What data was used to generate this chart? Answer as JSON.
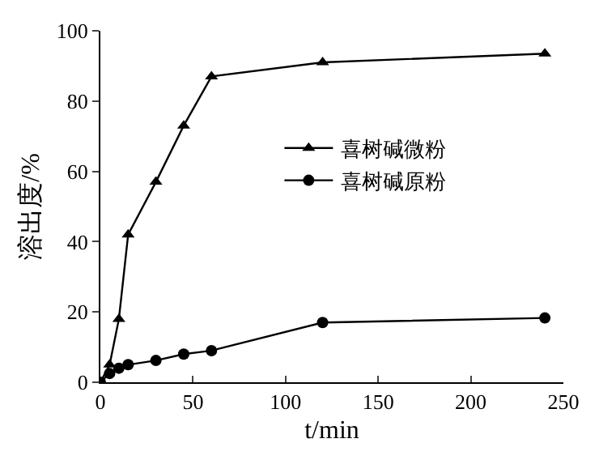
{
  "chart_data": {
    "type": "line",
    "xlabel": "t/min",
    "ylabel": "溶出度/%",
    "x": [
      0,
      5,
      10,
      15,
      30,
      45,
      60,
      120,
      240
    ],
    "series": [
      {
        "name": "喜树碱微粉",
        "color": "#000000",
        "marker": "triangle",
        "values": [
          0,
          5,
          18,
          42,
          57,
          73,
          87,
          91,
          93.5
        ]
      },
      {
        "name": "喜树碱原粉",
        "color": "#000000",
        "marker": "circle",
        "values": [
          0,
          2.5,
          4,
          5,
          6.2,
          8,
          9,
          17,
          18.3
        ]
      }
    ],
    "xlim": [
      0,
      250
    ],
    "xticks": [
      0,
      50,
      100,
      150,
      200,
      250
    ],
    "ylim": [
      0,
      100
    ],
    "yticks": [
      0,
      20,
      40,
      60,
      80,
      100
    ],
    "legend": "center",
    "line_style": "solid"
  }
}
